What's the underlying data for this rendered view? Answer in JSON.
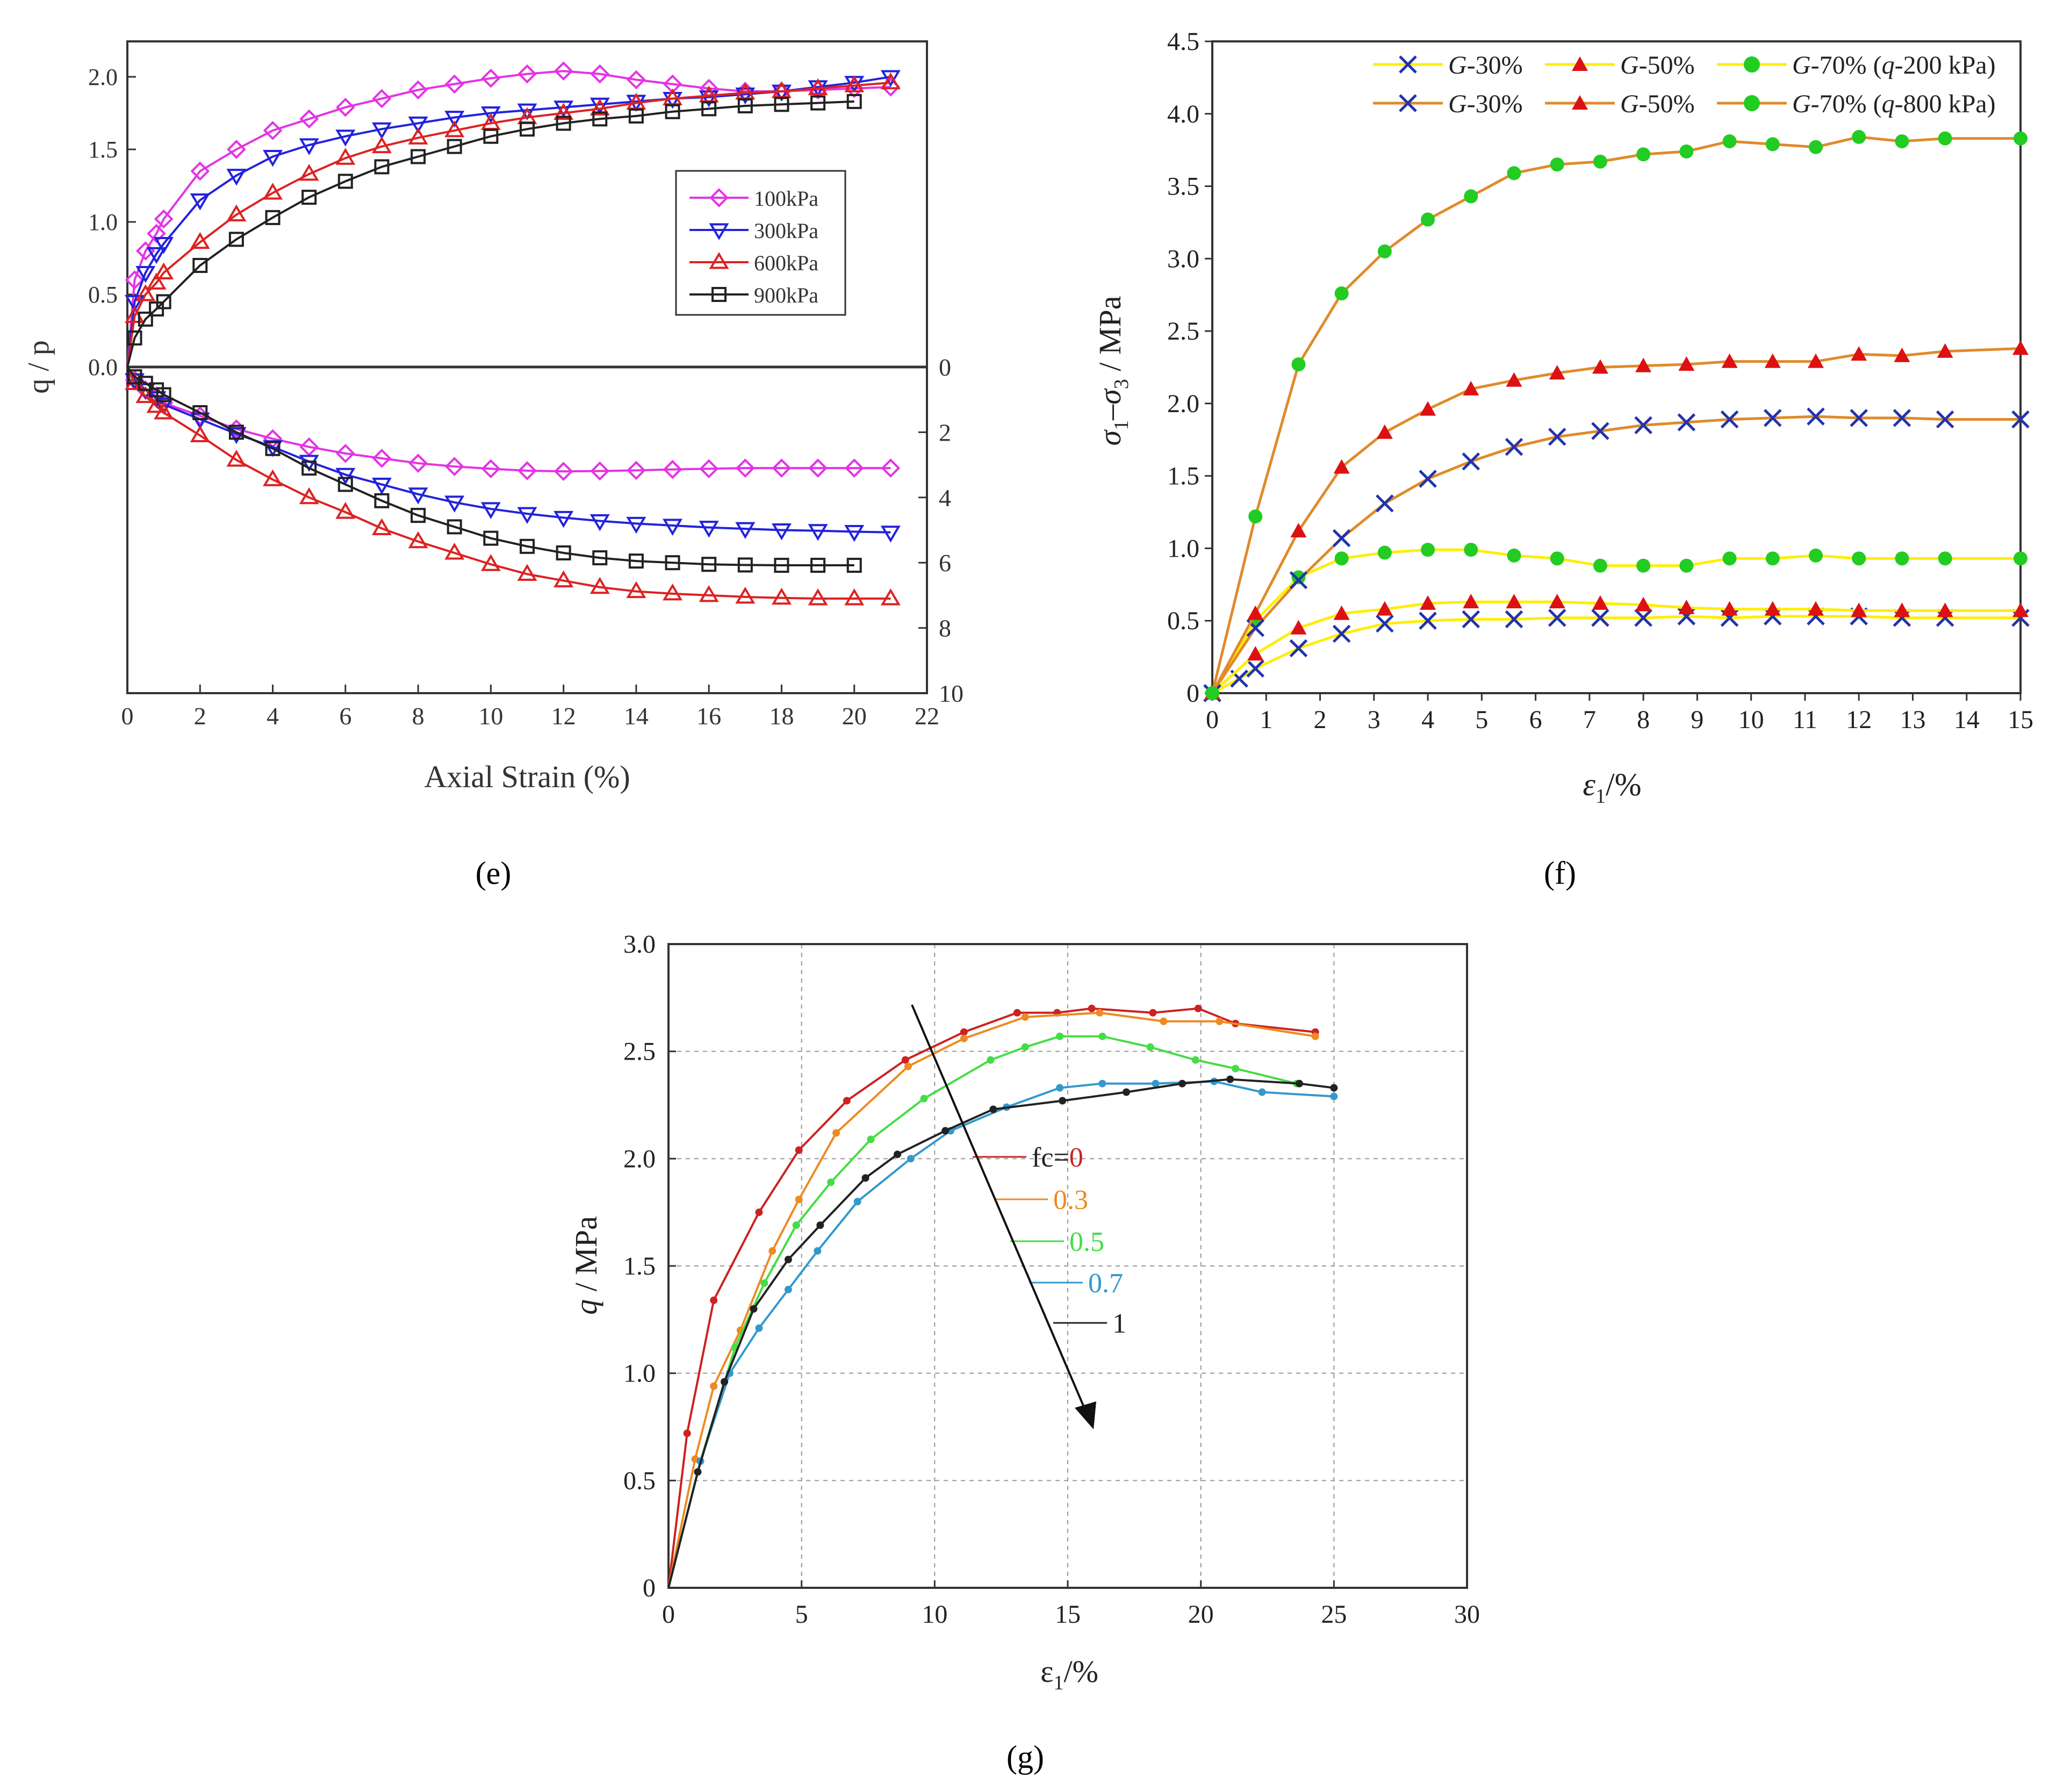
{
  "chart_data": [
    {
      "panel": "e",
      "caption": "(e)",
      "type": "line",
      "xlabel": "Axial Strain (%)",
      "ylabel": "q / p",
      "xlim": [
        0,
        22
      ],
      "ylim": [
        0,
        2.25
      ],
      "xticks": [
        "0",
        "2",
        "4",
        "6",
        "8",
        "10",
        "12",
        "14",
        "16",
        "18",
        "20",
        "22"
      ],
      "yticks": [
        "0.0",
        "0.5",
        "1.0",
        "1.5",
        "2.0"
      ],
      "right_ylim": [
        0,
        10
      ],
      "right_yticks": [
        "0",
        "2",
        "4",
        "6",
        "8",
        "10"
      ],
      "legend": [
        "100kPa",
        "300kPa",
        "600kPa",
        "900kPa"
      ],
      "legend_position": "center-right",
      "series": [
        {
          "name": "100kPa",
          "color": "#e433e4",
          "marker": "diamond",
          "x": [
            0,
            0.2,
            0.5,
            0.8,
            1,
            2,
            3,
            4,
            5,
            6,
            7,
            8,
            9,
            10,
            11,
            12,
            13,
            14,
            15,
            16,
            17,
            18,
            19,
            20,
            21
          ],
          "stress_ratio": [
            0,
            0.6,
            0.8,
            0.92,
            1.02,
            1.35,
            1.5,
            1.63,
            1.71,
            1.79,
            1.85,
            1.91,
            1.95,
            1.99,
            2.02,
            2.04,
            2.02,
            1.98,
            1.95,
            1.92,
            1.9,
            1.9,
            1.91,
            1.92,
            1.93
          ],
          "volumetric": [
            0,
            0.4,
            0.7,
            0.9,
            1.1,
            1.5,
            1.9,
            2.2,
            2.45,
            2.65,
            2.8,
            2.95,
            3.05,
            3.12,
            3.18,
            3.2,
            3.19,
            3.17,
            3.14,
            3.12,
            3.1,
            3.1,
            3.1,
            3.1,
            3.1
          ]
        },
        {
          "name": "300kPa",
          "color": "#2222dd",
          "marker": "triangle-down",
          "x": [
            0,
            0.2,
            0.5,
            0.8,
            1,
            2,
            3,
            4,
            5,
            6,
            7,
            8,
            9,
            10,
            11,
            12,
            13,
            14,
            15,
            16,
            17,
            18,
            19,
            20,
            21
          ],
          "stress_ratio": [
            0,
            0.45,
            0.65,
            0.78,
            0.85,
            1.15,
            1.32,
            1.45,
            1.53,
            1.59,
            1.64,
            1.68,
            1.72,
            1.75,
            1.77,
            1.79,
            1.81,
            1.83,
            1.85,
            1.86,
            1.88,
            1.9,
            1.93,
            1.96,
            2.0
          ],
          "volumetric": [
            0,
            0.4,
            0.7,
            0.95,
            1.15,
            1.6,
            2.05,
            2.45,
            2.9,
            3.3,
            3.6,
            3.9,
            4.15,
            4.35,
            4.5,
            4.62,
            4.72,
            4.8,
            4.86,
            4.92,
            4.96,
            5.0,
            5.02,
            5.05,
            5.07
          ]
        },
        {
          "name": "600kPa",
          "color": "#dd2222",
          "marker": "triangle-up",
          "x": [
            0,
            0.2,
            0.5,
            0.8,
            1,
            2,
            3,
            4,
            5,
            6,
            7,
            8,
            9,
            10,
            11,
            12,
            13,
            14,
            15,
            16,
            17,
            18,
            19,
            20,
            21
          ],
          "stress_ratio": [
            0,
            0.35,
            0.5,
            0.58,
            0.65,
            0.86,
            1.05,
            1.2,
            1.33,
            1.44,
            1.52,
            1.58,
            1.63,
            1.68,
            1.72,
            1.75,
            1.78,
            1.82,
            1.85,
            1.87,
            1.89,
            1.9,
            1.92,
            1.94,
            1.96
          ],
          "volumetric": [
            0,
            0.5,
            0.9,
            1.2,
            1.4,
            2.1,
            2.85,
            3.45,
            4.0,
            4.45,
            4.95,
            5.35,
            5.7,
            6.05,
            6.35,
            6.55,
            6.75,
            6.88,
            6.95,
            7.0,
            7.05,
            7.08,
            7.1,
            7.1,
            7.1
          ]
        },
        {
          "name": "900kPa",
          "color": "#222222",
          "marker": "square",
          "x": [
            0,
            0.2,
            0.5,
            0.8,
            1,
            2,
            3,
            4,
            5,
            6,
            7,
            8,
            9,
            10,
            11,
            12,
            13,
            14,
            15,
            16,
            17,
            18,
            19,
            20
          ],
          "stress_ratio": [
            0,
            0.2,
            0.33,
            0.4,
            0.45,
            0.7,
            0.88,
            1.03,
            1.17,
            1.28,
            1.38,
            1.45,
            1.52,
            1.59,
            1.64,
            1.68,
            1.71,
            1.73,
            1.76,
            1.78,
            1.8,
            1.81,
            1.82,
            1.83
          ],
          "volumetric": [
            0,
            0.3,
            0.5,
            0.7,
            0.85,
            1.4,
            2.0,
            2.5,
            3.1,
            3.6,
            4.1,
            4.55,
            4.9,
            5.25,
            5.5,
            5.7,
            5.85,
            5.95,
            6.0,
            6.05,
            6.07,
            6.08,
            6.08,
            6.08
          ]
        }
      ]
    },
    {
      "panel": "f",
      "caption": "(f)",
      "type": "line",
      "ylabel_parts": [
        "σ",
        "1",
        "–σ",
        "3",
        " / MPa"
      ],
      "xlabel_parts": [
        "ε",
        "1",
        "/%"
      ],
      "xlim": [
        0,
        15
      ],
      "ylim": [
        0,
        4.5
      ],
      "xticks": [
        "0",
        "1",
        "2",
        "3",
        "4",
        "5",
        "6",
        "7",
        "8",
        "9",
        "10",
        "11",
        "12",
        "13",
        "14",
        "15"
      ],
      "yticks": [
        "0",
        "0.5",
        "1.0",
        "1.5",
        "2.0",
        "2.5",
        "3.0",
        "3.5",
        "4.0",
        "4.5"
      ],
      "legend_rows": [
        {
          "line_color": "#ffee00",
          "items": [
            {
              "prefix": "G",
              "label": "-30%"
            },
            {
              "prefix": "G",
              "label": "-50%"
            },
            {
              "prefix": "G",
              "label": "-70% (",
              "italic_part": "q",
              "tail": "-200 kPa)"
            }
          ]
        },
        {
          "line_color": "#e08a2a",
          "items": [
            {
              "prefix": "G",
              "label": "-30%"
            },
            {
              "prefix": "G",
              "label": "-50%"
            },
            {
              "prefix": "G",
              "label": "-70% (",
              "italic_part": "q",
              "tail": "-800 kPa)"
            }
          ]
        }
      ],
      "legend_position": "top-right",
      "series": [
        {
          "name": "G-30% (q-200 kPa)",
          "line_color": "#ffee00",
          "marker": "x",
          "marker_color": "#2233aa",
          "x": [
            0,
            0.5,
            0.8,
            1.6,
            2.4,
            3.2,
            4,
            4.8,
            5.6,
            6.4,
            7.2,
            8,
            8.8,
            9.6,
            10.4,
            11.2,
            12,
            12.8,
            13.6,
            15
          ],
          "y": [
            0,
            0.1,
            0.17,
            0.31,
            0.41,
            0.48,
            0.5,
            0.51,
            0.51,
            0.52,
            0.52,
            0.52,
            0.53,
            0.52,
            0.53,
            0.53,
            0.53,
            0.52,
            0.52,
            0.52
          ]
        },
        {
          "name": "G-50% (q-200 kPa)",
          "line_color": "#ffee00",
          "marker": "triangle",
          "marker_color": "#dd1111",
          "x": [
            0,
            0.8,
            1.6,
            2.4,
            3.2,
            4,
            4.8,
            5.6,
            6.4,
            7.2,
            8,
            8.8,
            9.6,
            10.4,
            11.2,
            12,
            12.8,
            13.6,
            15
          ],
          "y": [
            0,
            0.27,
            0.45,
            0.55,
            0.58,
            0.62,
            0.63,
            0.63,
            0.63,
            0.62,
            0.61,
            0.59,
            0.58,
            0.58,
            0.58,
            0.57,
            0.57,
            0.57,
            0.57
          ]
        },
        {
          "name": "G-70% (q-200 kPa)",
          "line_color": "#ffee00",
          "marker": "circle",
          "marker_color": "#22cc22",
          "x": [
            0,
            0.8,
            1.6,
            2.4,
            3.2,
            4,
            4.8,
            5.6,
            6.4,
            7.2,
            8,
            8.8,
            9.6,
            10.4,
            11.2,
            12,
            12.8,
            13.6,
            15
          ],
          "y": [
            0,
            0.5,
            0.8,
            0.93,
            0.97,
            0.99,
            0.99,
            0.95,
            0.93,
            0.88,
            0.88,
            0.88,
            0.93,
            0.93,
            0.95,
            0.93,
            0.93,
            0.93,
            0.93
          ]
        },
        {
          "name": "G-30% (q-800 kPa)",
          "line_color": "#e08a2a",
          "marker": "x",
          "marker_color": "#2233aa",
          "x": [
            0,
            0.8,
            1.6,
            2.4,
            3.2,
            4,
            4.8,
            5.6,
            6.4,
            7.2,
            8,
            8.8,
            9.6,
            10.4,
            11.2,
            12,
            12.8,
            13.6,
            15
          ],
          "y": [
            0,
            0.45,
            0.78,
            1.07,
            1.31,
            1.48,
            1.6,
            1.7,
            1.77,
            1.81,
            1.85,
            1.87,
            1.89,
            1.9,
            1.91,
            1.9,
            1.9,
            1.89,
            1.89
          ]
        },
        {
          "name": "G-50% (q-800 kPa)",
          "line_color": "#e08a2a",
          "marker": "triangle",
          "marker_color": "#dd1111",
          "x": [
            0,
            0.8,
            1.6,
            2.4,
            3.2,
            4,
            4.8,
            5.6,
            6.4,
            7.2,
            8,
            8.8,
            9.6,
            10.4,
            11.2,
            12,
            12.8,
            13.6,
            15
          ],
          "y": [
            0,
            0.55,
            1.12,
            1.56,
            1.8,
            1.96,
            2.1,
            2.16,
            2.21,
            2.25,
            2.26,
            2.27,
            2.29,
            2.29,
            2.29,
            2.34,
            2.33,
            2.36,
            2.38
          ]
        },
        {
          "name": "G-70% (q-800 kPa)",
          "line_color": "#e08a2a",
          "marker": "circle",
          "marker_color": "#22cc22",
          "x": [
            0,
            0.8,
            1.6,
            2.4,
            3.2,
            4,
            4.8,
            5.6,
            6.4,
            7.2,
            8,
            8.8,
            9.6,
            10.4,
            11.2,
            12,
            12.8,
            13.6,
            15
          ],
          "y": [
            0,
            1.22,
            2.27,
            2.76,
            3.05,
            3.27,
            3.43,
            3.59,
            3.65,
            3.67,
            3.72,
            3.74,
            3.81,
            3.79,
            3.77,
            3.84,
            3.81,
            3.83,
            3.83
          ]
        }
      ]
    },
    {
      "panel": "g",
      "caption": "(g)",
      "type": "line",
      "ylabel_parts": [
        "q",
        " / MPa"
      ],
      "xlabel_parts": [
        "ε",
        "1",
        "/%"
      ],
      "xlim": [
        0,
        30
      ],
      "ylim": [
        0,
        3.0
      ],
      "xticks": [
        "0",
        "5",
        "10",
        "15",
        "20",
        "25",
        "30"
      ],
      "yticks": [
        "0",
        "0.5",
        "1.0",
        "1.5",
        "2.0",
        "2.5",
        "3.0"
      ],
      "grid": true,
      "legend": [
        {
          "label": "fc=0",
          "prefix": "fc=",
          "value": "0",
          "color": "#cc2222"
        },
        {
          "label": "0.3",
          "color": "#ee8a22"
        },
        {
          "label": "0.5",
          "color": "#44dd44"
        },
        {
          "label": "0.7",
          "color": "#3399cc"
        },
        {
          "label": "1",
          "color": "#222222"
        }
      ],
      "annotation": "arrow indicating increasing fc",
      "series": [
        {
          "name": "fc=0",
          "color": "#cc2222",
          "x": [
            0,
            0.7,
            1.7,
            3.4,
            4.9,
            6.7,
            8.9,
            11.1,
            13.1,
            14.6,
            15.9,
            18.2,
            19.9,
            21.3,
            24.3
          ],
          "y": [
            0,
            0.72,
            1.34,
            1.75,
            2.04,
            2.27,
            2.46,
            2.59,
            2.68,
            2.68,
            2.7,
            2.68,
            2.7,
            2.63,
            2.59
          ]
        },
        {
          "name": "0.3",
          "color": "#ee8a22",
          "x": [
            0,
            1.0,
            1.7,
            2.7,
            3.9,
            4.9,
            6.3,
            9.0,
            11.1,
            13.4,
            16.2,
            18.6,
            20.7,
            24.3
          ],
          "y": [
            0,
            0.6,
            0.94,
            1.2,
            1.57,
            1.81,
            2.12,
            2.43,
            2.56,
            2.66,
            2.68,
            2.64,
            2.64,
            2.57
          ]
        },
        {
          "name": "0.5",
          "color": "#44dd44",
          "x": [
            0,
            1.2,
            2.5,
            3.6,
            4.8,
            6.1,
            7.6,
            9.6,
            12.1,
            13.4,
            14.7,
            16.3,
            18.1,
            19.8,
            21.3,
            23.6
          ],
          "y": [
            0,
            0.59,
            1.12,
            1.42,
            1.69,
            1.89,
            2.09,
            2.28,
            2.46,
            2.52,
            2.57,
            2.57,
            2.52,
            2.46,
            2.42,
            2.35
          ]
        },
        {
          "name": "0.7",
          "color": "#3399cc",
          "x": [
            0,
            1.2,
            2.3,
            3.4,
            4.5,
            5.6,
            7.1,
            9.1,
            10.6,
            12.7,
            14.7,
            16.3,
            18.3,
            20.5,
            22.3,
            25.0
          ],
          "y": [
            0,
            0.59,
            1.0,
            1.21,
            1.39,
            1.57,
            1.8,
            2.0,
            2.13,
            2.24,
            2.33,
            2.35,
            2.35,
            2.36,
            2.31,
            2.29
          ]
        },
        {
          "name": "1",
          "color": "#222222",
          "x": [
            0,
            1.1,
            2.1,
            3.2,
            4.5,
            5.7,
            7.4,
            8.6,
            10.4,
            12.2,
            14.8,
            17.2,
            19.3,
            21.1,
            23.7,
            25.0
          ],
          "y": [
            0,
            0.54,
            0.96,
            1.3,
            1.53,
            1.69,
            1.91,
            2.02,
            2.13,
            2.23,
            2.27,
            2.31,
            2.35,
            2.37,
            2.35,
            2.33
          ]
        }
      ]
    }
  ]
}
